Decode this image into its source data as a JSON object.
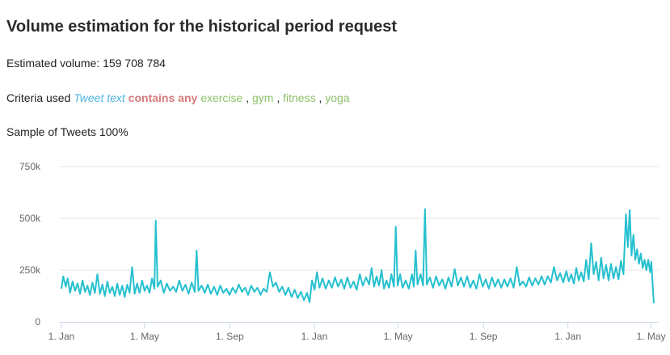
{
  "header": {
    "title": "Volume estimation for the historical period request"
  },
  "estimate": {
    "label": "Estimated volume:",
    "value": "159 708 784"
  },
  "criteria": {
    "label": "Criteria used",
    "field": "Tweet text",
    "operator": "contains any",
    "keywords": [
      "exercise",
      "gym",
      "fitness",
      "yoga"
    ],
    "separator": ","
  },
  "sample": {
    "text": "Sample of Tweets 100%"
  },
  "colors": {
    "series": "#26c0cf",
    "field": "#4fb3e0",
    "operator": "#d67a7a",
    "keyword": "#8cc26a",
    "grid": "#e6e6e6"
  },
  "chart_data": {
    "type": "line",
    "ylim": [
      0,
      750000
    ],
    "y_ticks": [
      {
        "value": 0,
        "label": "0"
      },
      {
        "value": 250000,
        "label": "250k"
      },
      {
        "value": 500000,
        "label": "500k"
      },
      {
        "value": 750000,
        "label": "750k"
      }
    ],
    "x_ticks": [
      "1. Jan",
      "1. May",
      "1. Sep",
      "1. Jan",
      "1. May",
      "1. Sep",
      "1. Jan",
      "1. May"
    ],
    "x_range": [
      "2019-01-01",
      "2021-05-05"
    ],
    "grid": true,
    "legend": "none",
    "series": [
      {
        "values": [
          [
            0,
            160000
          ],
          [
            3,
            220000
          ],
          [
            7,
            170000
          ],
          [
            10,
            210000
          ],
          [
            14,
            140000
          ],
          [
            18,
            195000
          ],
          [
            22,
            150000
          ],
          [
            26,
            185000
          ],
          [
            30,
            135000
          ],
          [
            34,
            200000
          ],
          [
            38,
            145000
          ],
          [
            42,
            175000
          ],
          [
            46,
            130000
          ],
          [
            50,
            190000
          ],
          [
            54,
            140000
          ],
          [
            58,
            230000
          ],
          [
            62,
            135000
          ],
          [
            66,
            180000
          ],
          [
            70,
            125000
          ],
          [
            74,
            195000
          ],
          [
            78,
            140000
          ],
          [
            82,
            170000
          ],
          [
            86,
            125000
          ],
          [
            90,
            185000
          ],
          [
            94,
            130000
          ],
          [
            98,
            175000
          ],
          [
            102,
            120000
          ],
          [
            106,
            180000
          ],
          [
            110,
            140000
          ],
          [
            114,
            265000
          ],
          [
            118,
            135000
          ],
          [
            122,
            185000
          ],
          [
            126,
            140000
          ],
          [
            130,
            200000
          ],
          [
            134,
            150000
          ],
          [
            138,
            175000
          ],
          [
            142,
            140000
          ],
          [
            146,
            210000
          ],
          [
            150,
            160000
          ],
          [
            152,
            490000
          ],
          [
            155,
            170000
          ],
          [
            160,
            200000
          ],
          [
            165,
            140000
          ],
          [
            170,
            185000
          ],
          [
            175,
            150000
          ],
          [
            180,
            170000
          ],
          [
            185,
            145000
          ],
          [
            190,
            200000
          ],
          [
            195,
            150000
          ],
          [
            200,
            180000
          ],
          [
            205,
            135000
          ],
          [
            210,
            190000
          ],
          [
            215,
            145000
          ],
          [
            218,
            345000
          ],
          [
            221,
            150000
          ],
          [
            226,
            175000
          ],
          [
            231,
            140000
          ],
          [
            236,
            180000
          ],
          [
            241,
            135000
          ],
          [
            246,
            170000
          ],
          [
            251,
            130000
          ],
          [
            256,
            175000
          ],
          [
            261,
            140000
          ],
          [
            266,
            160000
          ],
          [
            271,
            130000
          ],
          [
            276,
            165000
          ],
          [
            281,
            140000
          ],
          [
            286,
            180000
          ],
          [
            291,
            145000
          ],
          [
            296,
            165000
          ],
          [
            301,
            130000
          ],
          [
            306,
            175000
          ],
          [
            311,
            145000
          ],
          [
            316,
            165000
          ],
          [
            321,
            130000
          ],
          [
            326,
            160000
          ],
          [
            331,
            145000
          ],
          [
            336,
            240000
          ],
          [
            341,
            170000
          ],
          [
            346,
            190000
          ],
          [
            351,
            145000
          ],
          [
            356,
            170000
          ],
          [
            361,
            130000
          ],
          [
            366,
            165000
          ],
          [
            371,
            120000
          ],
          [
            376,
            155000
          ],
          [
            381,
            115000
          ],
          [
            386,
            145000
          ],
          [
            391,
            105000
          ],
          [
            396,
            140000
          ],
          [
            400,
            95000
          ],
          [
            404,
            200000
          ],
          [
            408,
            155000
          ],
          [
            412,
            240000
          ],
          [
            416,
            165000
          ],
          [
            421,
            210000
          ],
          [
            426,
            160000
          ],
          [
            431,
            200000
          ],
          [
            436,
            165000
          ],
          [
            441,
            215000
          ],
          [
            446,
            170000
          ],
          [
            451,
            205000
          ],
          [
            456,
            160000
          ],
          [
            461,
            215000
          ],
          [
            466,
            165000
          ],
          [
            471,
            195000
          ],
          [
            476,
            155000
          ],
          [
            481,
            230000
          ],
          [
            486,
            175000
          ],
          [
            491,
            215000
          ],
          [
            496,
            180000
          ],
          [
            500,
            260000
          ],
          [
            504,
            170000
          ],
          [
            508,
            220000
          ],
          [
            512,
            175000
          ],
          [
            516,
            250000
          ],
          [
            520,
            160000
          ],
          [
            524,
            200000
          ],
          [
            528,
            165000
          ],
          [
            532,
            230000
          ],
          [
            536,
            170000
          ],
          [
            539,
            460000
          ],
          [
            542,
            175000
          ],
          [
            546,
            230000
          ],
          [
            550,
            165000
          ],
          [
            555,
            200000
          ],
          [
            560,
            160000
          ],
          [
            565,
            230000
          ],
          [
            568,
            170000
          ],
          [
            571,
            345000
          ],
          [
            574,
            180000
          ],
          [
            579,
            230000
          ],
          [
            583,
            175000
          ],
          [
            586,
            545000
          ],
          [
            589,
            180000
          ],
          [
            594,
            215000
          ],
          [
            599,
            165000
          ],
          [
            604,
            220000
          ],
          [
            609,
            175000
          ],
          [
            614,
            205000
          ],
          [
            619,
            160000
          ],
          [
            624,
            215000
          ],
          [
            629,
            170000
          ],
          [
            634,
            255000
          ],
          [
            639,
            175000
          ],
          [
            644,
            215000
          ],
          [
            649,
            170000
          ],
          [
            654,
            220000
          ],
          [
            659,
            165000
          ],
          [
            664,
            200000
          ],
          [
            669,
            160000
          ],
          [
            674,
            230000
          ],
          [
            679,
            170000
          ],
          [
            684,
            205000
          ],
          [
            689,
            160000
          ],
          [
            694,
            215000
          ],
          [
            699,
            170000
          ],
          [
            704,
            205000
          ],
          [
            709,
            165000
          ],
          [
            714,
            205000
          ],
          [
            719,
            170000
          ],
          [
            724,
            210000
          ],
          [
            729,
            165000
          ],
          [
            734,
            265000
          ],
          [
            739,
            175000
          ],
          [
            744,
            195000
          ],
          [
            749,
            170000
          ],
          [
            754,
            215000
          ],
          [
            759,
            175000
          ],
          [
            764,
            210000
          ],
          [
            769,
            180000
          ],
          [
            774,
            220000
          ],
          [
            779,
            180000
          ],
          [
            784,
            220000
          ],
          [
            789,
            190000
          ],
          [
            794,
            265000
          ],
          [
            799,
            200000
          ],
          [
            804,
            235000
          ],
          [
            809,
            190000
          ],
          [
            814,
            245000
          ],
          [
            818,
            195000
          ],
          [
            822,
            230000
          ],
          [
            826,
            185000
          ],
          [
            830,
            260000
          ],
          [
            834,
            200000
          ],
          [
            838,
            240000
          ],
          [
            842,
            195000
          ],
          [
            846,
            300000
          ],
          [
            850,
            205000
          ],
          [
            854,
            380000
          ],
          [
            858,
            230000
          ],
          [
            862,
            290000
          ],
          [
            866,
            200000
          ],
          [
            870,
            310000
          ],
          [
            874,
            210000
          ],
          [
            878,
            275000
          ],
          [
            882,
            200000
          ],
          [
            886,
            280000
          ],
          [
            890,
            210000
          ],
          [
            894,
            265000
          ],
          [
            898,
            205000
          ],
          [
            902,
            295000
          ],
          [
            906,
            230000
          ],
          [
            910,
            520000
          ],
          [
            913,
            360000
          ],
          [
            916,
            540000
          ],
          [
            919,
            320000
          ],
          [
            922,
            420000
          ],
          [
            925,
            300000
          ],
          [
            928,
            350000
          ],
          [
            931,
            280000
          ],
          [
            934,
            330000
          ],
          [
            937,
            260000
          ],
          [
            940,
            300000
          ],
          [
            943,
            250000
          ],
          [
            946,
            300000
          ],
          [
            949,
            240000
          ],
          [
            951,
            290000
          ],
          [
            953,
            180000
          ],
          [
            955,
            90000
          ]
        ]
      }
    ]
  }
}
